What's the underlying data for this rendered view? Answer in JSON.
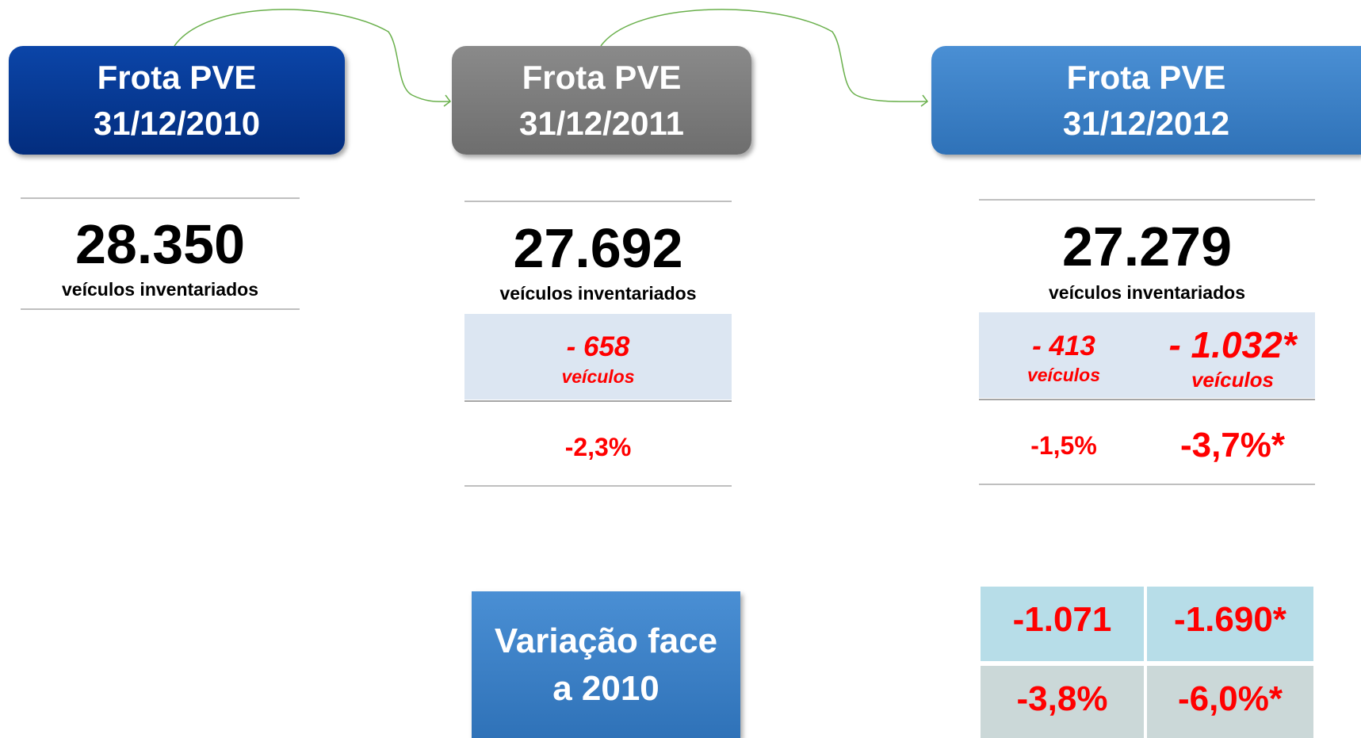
{
  "boxes": [
    {
      "line1": "Frota PVE",
      "line2": "31/12/2010"
    },
    {
      "line1": "Frota PVE",
      "line2": "31/12/2011"
    },
    {
      "line1": "Frota PVE",
      "line2": "31/12/2012"
    }
  ],
  "totals": [
    {
      "value": "28.350",
      "caption": "veículos inventariados"
    },
    {
      "value": "27.692",
      "caption": "veículos inventariados"
    },
    {
      "value": "27.279",
      "caption": "veículos inventariados"
    }
  ],
  "variation_2011": {
    "vehicles": "- 658",
    "unit": "veículos",
    "percent": "-2,3%"
  },
  "variation_2012": [
    {
      "vehicles": "- 413",
      "unit": "veículos",
      "percent": "-1,5%"
    },
    {
      "vehicles": "- 1.032*",
      "unit": "veículos",
      "percent": "-3,7%*"
    }
  ],
  "comparison_box": "Variação face a 2010",
  "table": {
    "rows": [
      [
        "-1.071",
        "-1.690*"
      ],
      [
        "-3,8%",
        "-6,0%*"
      ]
    ]
  }
}
